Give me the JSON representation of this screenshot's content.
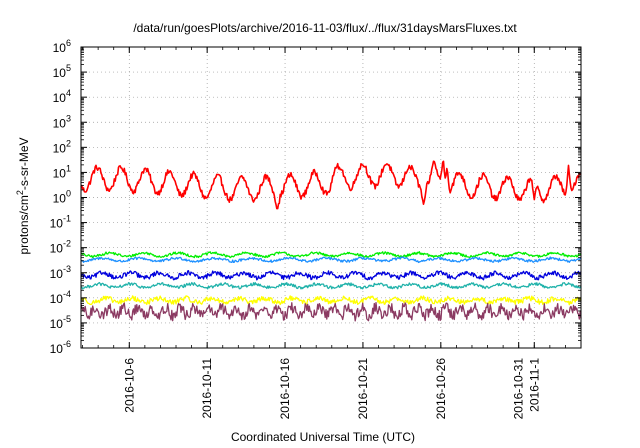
{
  "chart_data": {
    "type": "line",
    "title": "/data/run/goesPlots/archive/2016-11-03/flux/../flux/31daysMarsFluxes.txt",
    "xlabel": "Coordinated Universal Time (UTC)",
    "ylabel": {
      "prefix": "protons/cm",
      "sup": "2",
      "suffix": "-s-sr-MeV"
    },
    "yscale": "log",
    "ylim_exp": [
      -6,
      6
    ],
    "y_ticks": [
      {
        "base": "10",
        "exp": "-6"
      },
      {
        "base": "10",
        "exp": "-5"
      },
      {
        "base": "10",
        "exp": "-4"
      },
      {
        "base": "10",
        "exp": "-3"
      },
      {
        "base": "10",
        "exp": "-2"
      },
      {
        "base": "10",
        "exp": "-1"
      },
      {
        "base": "10",
        "exp": "0"
      },
      {
        "base": "10",
        "exp": "1"
      },
      {
        "base": "10",
        "exp": "2"
      },
      {
        "base": "10",
        "exp": "3"
      },
      {
        "base": "10",
        "exp": "4"
      },
      {
        "base": "10",
        "exp": "5"
      },
      {
        "base": "10",
        "exp": "6"
      }
    ],
    "x_range_days": [
      2.9,
      35.0
    ],
    "x_ticks": [
      {
        "label": "2016-10-6",
        "day": 6
      },
      {
        "label": "2016-10-11",
        "day": 11
      },
      {
        "label": "2016-10-16",
        "day": 16
      },
      {
        "label": "2016-10-21",
        "day": 21
      },
      {
        "label": "2016-10-26",
        "day": 26
      },
      {
        "label": "2016-10-31",
        "day": 31
      },
      {
        "label": "2016-11-1",
        "day": 32
      }
    ],
    "grid": true,
    "series": [
      {
        "color": "#ff0000",
        "base_log": 0.55,
        "amp": 0.45,
        "period": 1.55,
        "noise": 0.12
      },
      {
        "color": "#00ee00",
        "base_log": -2.28,
        "amp": 0.07,
        "period": 2.2,
        "noise": 0.05
      },
      {
        "color": "#1e90ff",
        "base_log": -2.48,
        "amp": 0.06,
        "period": 2.4,
        "noise": 0.05
      },
      {
        "color": "#0000dd",
        "base_log": -3.1,
        "amp": 0.1,
        "period": 1.8,
        "noise": 0.09
      },
      {
        "color": "#20b2aa",
        "base_log": -3.52,
        "amp": 0.07,
        "period": 2.0,
        "noise": 0.06
      },
      {
        "color": "#ffff00",
        "base_log": -4.1,
        "amp": 0.08,
        "period": 1.7,
        "noise": 0.1
      },
      {
        "color": "#8b3a62",
        "base_log": -4.55,
        "amp": 0.15,
        "period": 0.9,
        "noise": 0.22
      }
    ],
    "red_spikes": [
      {
        "day": 25.55,
        "log": 1.5
      },
      {
        "day": 26.15,
        "log": 1.6
      },
      {
        "day": 26.4,
        "log": 1.25
      },
      {
        "day": 34.2,
        "log": 1.3
      },
      {
        "day": 24.9,
        "log": -0.3
      },
      {
        "day": 15.5,
        "log": -0.5
      },
      {
        "day": 32.0,
        "log": -0.1
      }
    ]
  }
}
